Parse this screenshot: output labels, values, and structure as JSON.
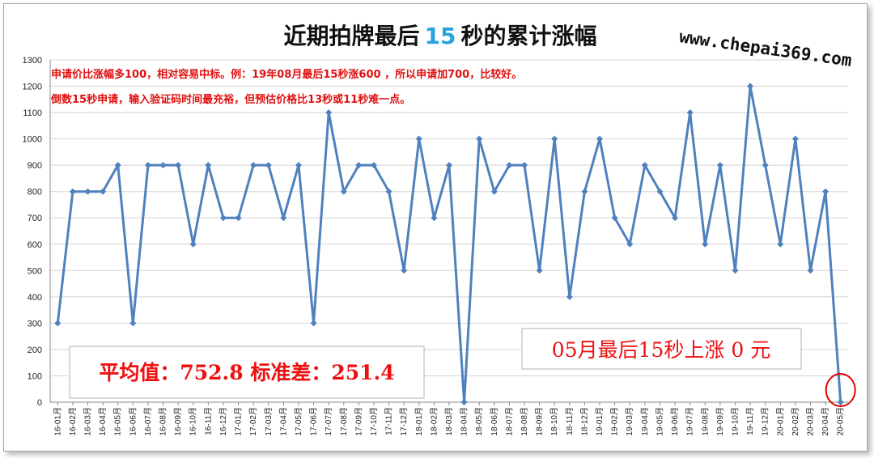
{
  "chart_data": {
    "type": "line",
    "title": {
      "before": "近期拍牌最后",
      "highlight": "15",
      "after": "秒的累计涨幅"
    },
    "watermark": "www.chepai369.com",
    "annotations": [
      "申请价比涨幅多100，相对容易中标。例：19年08月最后15秒涨600 ，所以申请加700，比较好。",
      "倒数15秒申请，输入验证码时间最充裕，但预估价格比13秒或11秒难一点。"
    ],
    "stats_text": "平均值：752.8 标准差：251.4",
    "latest_text": "05月最后15秒上涨 0 元",
    "ylim": [
      0,
      1300
    ],
    "yticks": [
      0,
      100,
      200,
      300,
      400,
      500,
      600,
      700,
      800,
      900,
      1000,
      1100,
      1200,
      1300
    ],
    "grid": true,
    "categories": [
      "16-01月",
      "16-02月",
      "16-03月",
      "16-04月",
      "16-05月",
      "16-06月",
      "16-07月",
      "16-08月",
      "16-09月",
      "16-10月",
      "16-11月",
      "16-12月",
      "17-01月",
      "17-02月",
      "17-03月",
      "17-04月",
      "17-05月",
      "17-06月",
      "17-07月",
      "17-08月",
      "17-09月",
      "17-10月",
      "17-11月",
      "17-12月",
      "18-01月",
      "18-02月",
      "18-03月",
      "18-04月",
      "18-05月",
      "18-06月",
      "18-07月",
      "18-08月",
      "18-09月",
      "18-10月",
      "18-11月",
      "18-12月",
      "19-01月",
      "19-02月",
      "19-03月",
      "19-04月",
      "19-05月",
      "19-06月",
      "19-07月",
      "19-08月",
      "19-09月",
      "19-10月",
      "19-11月",
      "19-12月",
      "20-01月",
      "20-02月",
      "20-03月",
      "20-04月",
      "20-05月"
    ],
    "values": [
      300,
      800,
      800,
      800,
      900,
      300,
      900,
      900,
      900,
      600,
      900,
      700,
      700,
      900,
      900,
      700,
      900,
      300,
      1100,
      800,
      900,
      900,
      800,
      500,
      1000,
      700,
      900,
      0,
      1000,
      800,
      900,
      900,
      500,
      1000,
      400,
      800,
      1000,
      700,
      600,
      900,
      800,
      700,
      1100,
      600,
      900,
      500,
      1200,
      900,
      600,
      1000,
      500,
      800,
      0
    ],
    "colors": {
      "series": "#4f81bd",
      "text_red": "#e01010",
      "title_accent": "#29a3e0"
    },
    "highlight_last_point": true
  }
}
